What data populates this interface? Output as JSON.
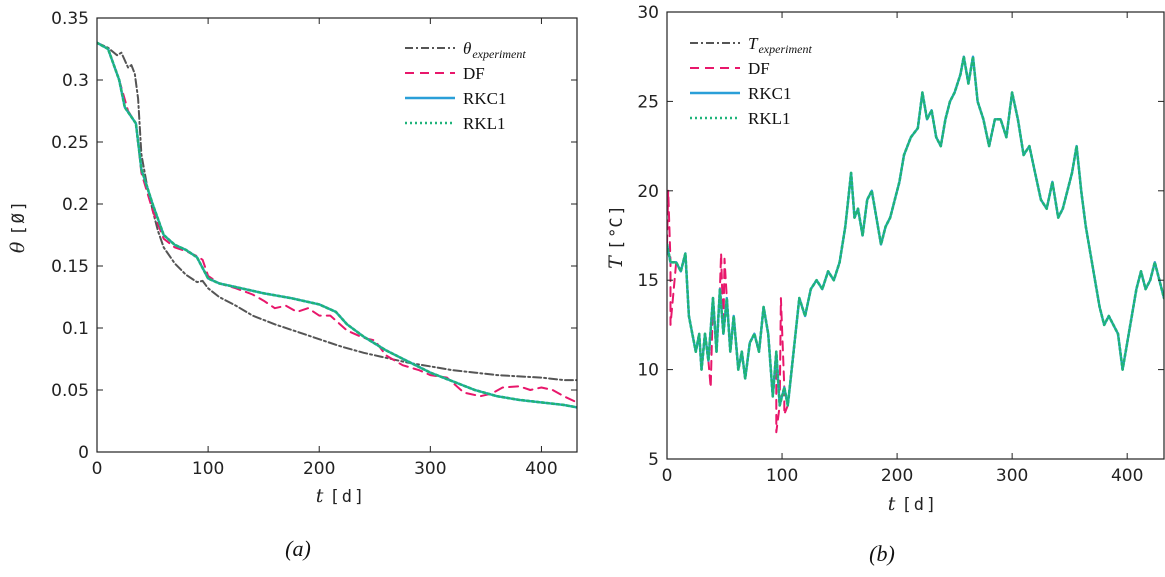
{
  "chart_data": [
    {
      "type": "line",
      "caption": "(a)",
      "ylabel": "θ",
      "yunit": "Ø",
      "xlabel": "t",
      "xunit": "d",
      "xlim": [
        0,
        432
      ],
      "ylim": [
        0,
        0.35
      ],
      "xticks": [
        "0",
        "100",
        "200",
        "300",
        "400"
      ],
      "xtick_values": [
        0,
        100,
        200,
        300,
        400
      ],
      "yticks": [
        "0",
        "0.05",
        "0.1",
        "0.15",
        "0.2",
        "0.25",
        "0.3",
        "0.35"
      ],
      "ytick_values": [
        0,
        0.05,
        0.1,
        0.15,
        0.2,
        0.25,
        0.3,
        0.35
      ],
      "legend_position": "top-right",
      "series": [
        {
          "name": "θexperiment",
          "legend_main": "θ",
          "legend_sub": "experiment",
          "color": "#555555",
          "style": "dashdot",
          "points": [
            [
              0,
              0.33
            ],
            [
              10,
              0.326
            ],
            [
              18,
              0.32
            ],
            [
              22,
              0.322
            ],
            [
              28,
              0.31
            ],
            [
              31,
              0.312
            ],
            [
              34,
              0.305
            ],
            [
              37,
              0.285
            ],
            [
              40,
              0.24
            ],
            [
              45,
              0.215
            ],
            [
              50,
              0.195
            ],
            [
              55,
              0.178
            ],
            [
              60,
              0.165
            ],
            [
              70,
              0.152
            ],
            [
              80,
              0.143
            ],
            [
              90,
              0.137
            ],
            [
              95,
              0.138
            ],
            [
              100,
              0.132
            ],
            [
              110,
              0.125
            ],
            [
              125,
              0.118
            ],
            [
              140,
              0.11
            ],
            [
              160,
              0.103
            ],
            [
              180,
              0.097
            ],
            [
              200,
              0.091
            ],
            [
              220,
              0.085
            ],
            [
              240,
              0.08
            ],
            [
              260,
              0.076
            ],
            [
              280,
              0.072
            ],
            [
              300,
              0.069
            ],
            [
              320,
              0.066
            ],
            [
              340,
              0.064
            ],
            [
              360,
              0.062
            ],
            [
              380,
              0.061
            ],
            [
              400,
              0.06
            ],
            [
              420,
              0.058
            ],
            [
              432,
              0.058
            ]
          ]
        },
        {
          "name": "DF",
          "color": "#e8176b",
          "style": "dashed",
          "points": [
            [
              0,
              0.33
            ],
            [
              10,
              0.325
            ],
            [
              20,
              0.3
            ],
            [
              28,
              0.275
            ],
            [
              35,
              0.265
            ],
            [
              40,
              0.225
            ],
            [
              50,
              0.195
            ],
            [
              60,
              0.172
            ],
            [
              70,
              0.165
            ],
            [
              80,
              0.162
            ],
            [
              90,
              0.158
            ],
            [
              95,
              0.155
            ],
            [
              100,
              0.142
            ],
            [
              110,
              0.136
            ],
            [
              125,
              0.132
            ],
            [
              140,
              0.127
            ],
            [
              150,
              0.122
            ],
            [
              160,
              0.116
            ],
            [
              170,
              0.118
            ],
            [
              180,
              0.113
            ],
            [
              190,
              0.116
            ],
            [
              200,
              0.11
            ],
            [
              210,
              0.11
            ],
            [
              225,
              0.098
            ],
            [
              240,
              0.092
            ],
            [
              250,
              0.09
            ],
            [
              260,
              0.078
            ],
            [
              275,
              0.07
            ],
            [
              290,
              0.066
            ],
            [
              300,
              0.062
            ],
            [
              315,
              0.06
            ],
            [
              330,
              0.048
            ],
            [
              345,
              0.045
            ],
            [
              355,
              0.047
            ],
            [
              365,
              0.052
            ],
            [
              380,
              0.053
            ],
            [
              390,
              0.05
            ],
            [
              400,
              0.052
            ],
            [
              410,
              0.05
            ],
            [
              420,
              0.045
            ],
            [
              432,
              0.04
            ]
          ]
        },
        {
          "name": "RKC1",
          "color": "#2a9fd8",
          "style": "solid",
          "points": [
            [
              0,
              0.33
            ],
            [
              10,
              0.325
            ],
            [
              20,
              0.3
            ],
            [
              25,
              0.278
            ],
            [
              35,
              0.265
            ],
            [
              40,
              0.228
            ],
            [
              50,
              0.2
            ],
            [
              60,
              0.175
            ],
            [
              70,
              0.167
            ],
            [
              80,
              0.163
            ],
            [
              90,
              0.157
            ],
            [
              100,
              0.14
            ],
            [
              110,
              0.136
            ],
            [
              125,
              0.133
            ],
            [
              150,
              0.128
            ],
            [
              175,
              0.124
            ],
            [
              200,
              0.119
            ],
            [
              215,
              0.113
            ],
            [
              225,
              0.103
            ],
            [
              240,
              0.093
            ],
            [
              260,
              0.082
            ],
            [
              280,
              0.073
            ],
            [
              300,
              0.064
            ],
            [
              320,
              0.057
            ],
            [
              340,
              0.05
            ],
            [
              360,
              0.045
            ],
            [
              380,
              0.042
            ],
            [
              400,
              0.04
            ],
            [
              420,
              0.038
            ],
            [
              432,
              0.036
            ]
          ]
        },
        {
          "name": "RKL1",
          "color": "#1fb37a",
          "style": "dotted",
          "points": [
            [
              0,
              0.33
            ],
            [
              10,
              0.325
            ],
            [
              20,
              0.3
            ],
            [
              25,
              0.278
            ],
            [
              35,
              0.265
            ],
            [
              40,
              0.228
            ],
            [
              50,
              0.2
            ],
            [
              60,
              0.175
            ],
            [
              70,
              0.167
            ],
            [
              80,
              0.163
            ],
            [
              90,
              0.157
            ],
            [
              100,
              0.14
            ],
            [
              110,
              0.136
            ],
            [
              125,
              0.133
            ],
            [
              150,
              0.128
            ],
            [
              175,
              0.124
            ],
            [
              200,
              0.119
            ],
            [
              215,
              0.113
            ],
            [
              225,
              0.103
            ],
            [
              240,
              0.093
            ],
            [
              260,
              0.082
            ],
            [
              280,
              0.073
            ],
            [
              300,
              0.064
            ],
            [
              320,
              0.057
            ],
            [
              340,
              0.05
            ],
            [
              360,
              0.045
            ],
            [
              380,
              0.042
            ],
            [
              400,
              0.04
            ],
            [
              420,
              0.038
            ],
            [
              432,
              0.036
            ]
          ]
        }
      ]
    },
    {
      "type": "line",
      "caption": "(b)",
      "ylabel": "T",
      "yunit": "°C",
      "xlabel": "t",
      "xunit": "d",
      "xlim": [
        0,
        432
      ],
      "ylim": [
        5,
        30
      ],
      "xticks": [
        "0",
        "100",
        "200",
        "300",
        "400"
      ],
      "xtick_values": [
        0,
        100,
        200,
        300,
        400
      ],
      "yticks": [
        "5",
        "10",
        "15",
        "20",
        "25",
        "30"
      ],
      "ytick_values": [
        5,
        10,
        15,
        20,
        25,
        30
      ],
      "legend_position": "top-left",
      "base_series": [
        [
          0,
          17
        ],
        [
          3,
          16
        ],
        [
          8,
          16
        ],
        [
          12,
          15.5
        ],
        [
          16,
          16.5
        ],
        [
          19,
          13
        ],
        [
          22,
          12
        ],
        [
          25,
          11
        ],
        [
          28,
          12
        ],
        [
          30,
          10
        ],
        [
          33,
          12
        ],
        [
          36,
          10.5
        ],
        [
          40,
          14
        ],
        [
          43,
          11
        ],
        [
          46,
          14.5
        ],
        [
          49,
          12
        ],
        [
          52,
          14
        ],
        [
          55,
          11
        ],
        [
          58,
          13
        ],
        [
          62,
          10
        ],
        [
          65,
          11
        ],
        [
          68,
          9.5
        ],
        [
          72,
          11.5
        ],
        [
          76,
          12
        ],
        [
          80,
          11
        ],
        [
          84,
          13.5
        ],
        [
          88,
          12
        ],
        [
          92,
          8.5
        ],
        [
          95,
          11
        ],
        [
          98,
          8
        ],
        [
          102,
          9
        ],
        [
          105,
          8
        ],
        [
          110,
          11
        ],
        [
          115,
          14
        ],
        [
          120,
          13
        ],
        [
          125,
          14.5
        ],
        [
          130,
          15
        ],
        [
          135,
          14.5
        ],
        [
          140,
          15.5
        ],
        [
          145,
          15
        ],
        [
          150,
          16
        ],
        [
          155,
          18
        ],
        [
          160,
          21
        ],
        [
          163,
          18.5
        ],
        [
          166,
          19
        ],
        [
          170,
          17.5
        ],
        [
          174,
          19.5
        ],
        [
          178,
          20
        ],
        [
          182,
          18.5
        ],
        [
          186,
          17
        ],
        [
          190,
          18
        ],
        [
          194,
          18.5
        ],
        [
          198,
          19.5
        ],
        [
          202,
          20.5
        ],
        [
          206,
          22
        ],
        [
          212,
          23
        ],
        [
          218,
          23.5
        ],
        [
          222,
          25.5
        ],
        [
          226,
          24
        ],
        [
          230,
          24.5
        ],
        [
          234,
          23
        ],
        [
          238,
          22.5
        ],
        [
          242,
          24
        ],
        [
          246,
          25
        ],
        [
          250,
          25.5
        ],
        [
          255,
          26.5
        ],
        [
          258,
          27.5
        ],
        [
          262,
          26
        ],
        [
          266,
          27.5
        ],
        [
          270,
          25
        ],
        [
          275,
          24
        ],
        [
          280,
          22.5
        ],
        [
          285,
          24
        ],
        [
          290,
          24
        ],
        [
          295,
          23
        ],
        [
          300,
          25.5
        ],
        [
          305,
          24
        ],
        [
          310,
          22
        ],
        [
          315,
          22.5
        ],
        [
          320,
          21
        ],
        [
          325,
          19.5
        ],
        [
          330,
          19
        ],
        [
          335,
          20.5
        ],
        [
          340,
          18.5
        ],
        [
          344,
          19
        ],
        [
          348,
          20
        ],
        [
          352,
          21
        ],
        [
          356,
          22.5
        ],
        [
          360,
          20
        ],
        [
          364,
          18
        ],
        [
          368,
          16.5
        ],
        [
          372,
          15
        ],
        [
          376,
          13.5
        ],
        [
          380,
          12.5
        ],
        [
          384,
          13
        ],
        [
          388,
          12.5
        ],
        [
          392,
          12
        ],
        [
          396,
          10
        ],
        [
          400,
          11.5
        ],
        [
          404,
          13
        ],
        [
          408,
          14.5
        ],
        [
          412,
          15.5
        ],
        [
          416,
          14.5
        ],
        [
          420,
          15
        ],
        [
          424,
          16
        ],
        [
          428,
          15
        ],
        [
          432,
          14
        ]
      ],
      "series": [
        {
          "name": "Texperiment",
          "legend_main": "T",
          "legend_sub": "experiment",
          "color": "#555555",
          "style": "dashdot"
        },
        {
          "name": "DF",
          "color": "#e8176b",
          "style": "dashed",
          "spikes": [
            [
              1,
              20
            ],
            [
              3,
              12.5
            ],
            [
              38,
              9
            ],
            [
              47,
              16.5
            ],
            [
              50,
              16.2
            ],
            [
              95,
              6.5
            ],
            [
              99,
              14
            ],
            [
              102,
              7.5
            ]
          ]
        },
        {
          "name": "RKC1",
          "color": "#2a9fd8",
          "style": "solid"
        },
        {
          "name": "RKL1",
          "color": "#1fb37a",
          "style": "dotted"
        }
      ]
    }
  ]
}
